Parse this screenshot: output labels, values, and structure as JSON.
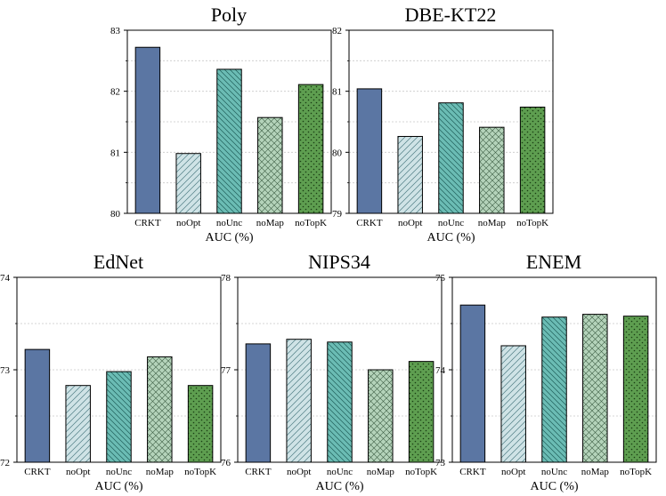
{
  "colors": {
    "CRKT": "#5b76a3",
    "noOpt": "#cfe3e6",
    "noUnc": "#6bbcb4",
    "noMap": "#b4d3ba",
    "noTopK": "#5e9e50"
  },
  "chart_data": [
    {
      "type": "bar",
      "title": "Poly",
      "categories": [
        "CRKT",
        "noOpt",
        "noUnc",
        "noMap",
        "noTopK"
      ],
      "values": [
        82.72,
        80.98,
        82.36,
        81.57,
        82.11
      ],
      "xlabel": "AUC (%)",
      "ylabel": "",
      "ylim": [
        80,
        83
      ],
      "yticks": [
        "80",
        "81",
        "82",
        "83"
      ]
    },
    {
      "type": "bar",
      "title": "DBE-KT22",
      "categories": [
        "CRKT",
        "noOpt",
        "noUnc",
        "noMap",
        "noTopK"
      ],
      "values": [
        81.04,
        80.26,
        80.81,
        80.41,
        80.74
      ],
      "xlabel": "AUC (%)",
      "ylabel": "",
      "ylim": [
        79,
        82
      ],
      "yticks": [
        "79",
        "80",
        "81",
        "82"
      ]
    },
    {
      "type": "bar",
      "title": "EdNet",
      "categories": [
        "CRKT",
        "noOpt",
        "noUnc",
        "noMap",
        "noTopK"
      ],
      "values": [
        73.22,
        72.83,
        72.98,
        73.14,
        72.83
      ],
      "xlabel": "AUC (%)",
      "ylabel": "",
      "ylim": [
        72,
        74
      ],
      "yticks": [
        "72",
        "73",
        "74"
      ]
    },
    {
      "type": "bar",
      "title": "NIPS34",
      "categories": [
        "CRKT",
        "noOpt",
        "noUnc",
        "noMap",
        "noTopK"
      ],
      "values": [
        77.28,
        77.33,
        77.3,
        77.0,
        77.09
      ],
      "xlabel": "AUC (%)",
      "ylabel": "",
      "ylim": [
        76,
        78
      ],
      "yticks": [
        "76",
        "77",
        "78"
      ]
    },
    {
      "type": "bar",
      "title": "ENEM",
      "categories": [
        "CRKT",
        "noOpt",
        "noUnc",
        "noMap",
        "noTopK"
      ],
      "values": [
        74.7,
        74.26,
        74.57,
        74.6,
        74.58
      ],
      "xlabel": "AUC (%)",
      "ylabel": "",
      "ylim": [
        73,
        75
      ],
      "yticks": [
        "73",
        "74",
        "75"
      ]
    }
  ]
}
